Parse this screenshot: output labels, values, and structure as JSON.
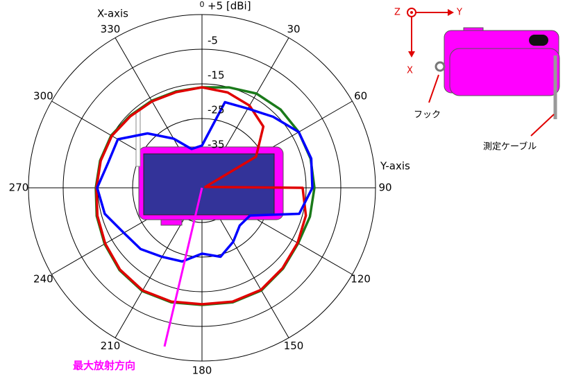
{
  "chart_data": {
    "type": "polar",
    "x_axis_label": "X-axis",
    "y_axis_label": "Y-axis",
    "annotation": "最大放射方向",
    "theta": [
      0,
      15,
      30,
      45,
      60,
      75,
      90,
      105,
      120,
      135,
      150,
      165,
      180,
      195,
      210,
      225,
      240,
      255,
      270,
      285,
      300,
      315,
      330,
      345
    ],
    "thetaticks": [
      0,
      30,
      60,
      90,
      120,
      150,
      180,
      210,
      240,
      270,
      300,
      330
    ],
    "rlim": [
      -45,
      5
    ],
    "rticks": [
      -35,
      -25,
      -15,
      -5,
      {
        "value": 5,
        "label": "+5 [dBi]"
      }
    ],
    "grid": true,
    "series": [
      {
        "color": "#1a7a1a",
        "values": [
          -16,
          -15,
          -13.6,
          -13,
          -12.8,
          -12.6,
          -12.6,
          -12.8,
          -13,
          -12,
          -10.8,
          -10.8,
          -11.2,
          -10.8,
          -10.6,
          -11.4,
          -12.6,
          -13.6,
          -14.4,
          -14.6,
          -14.8,
          -15.6,
          -16,
          -16.2
        ]
      },
      {
        "color": "#e00000",
        "values": [
          -16,
          -16.5,
          -17.6,
          -20,
          -27,
          -44,
          -16,
          -14,
          -13.2,
          -12.2,
          -11,
          -11,
          -11.4,
          -11,
          -10.8,
          -11.6,
          -12.8,
          -13.8,
          -14.6,
          -14.8,
          -15,
          -15.8,
          -16.2,
          -16.4
        ]
      },
      {
        "color": "#0000ff",
        "values": [
          -32.8,
          -19.4,
          -18.6,
          -16,
          -12.8,
          -12.4,
          -13.2,
          -16,
          -29,
          -29.6,
          -27,
          -24.4,
          -26,
          -23,
          -22,
          -20,
          -19,
          -16,
          -14.8,
          -17,
          -17,
          -22.8,
          -28.6,
          -33.4
        ]
      }
    ]
  },
  "inset": {
    "axis_z": "Z",
    "axis_y": "Y",
    "axis_x": "X",
    "hook": "フック",
    "cable": "測定ケーブル"
  }
}
